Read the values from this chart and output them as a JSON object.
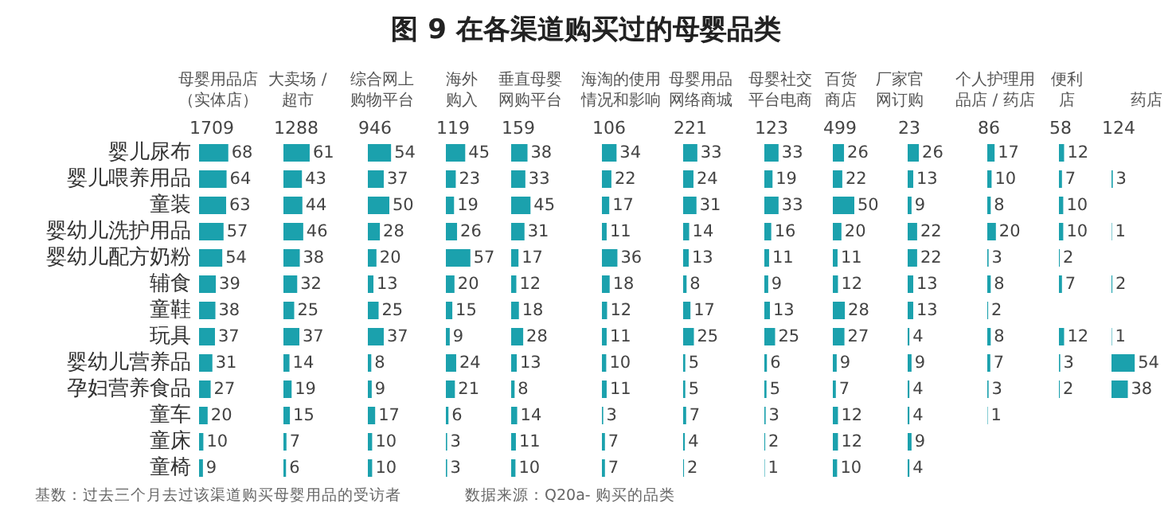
{
  "chart_data": [
    {
      "type": "bar",
      "orientation": "horizontal",
      "title": "母婴用品店（实体店）",
      "subtitle": "1709",
      "categories": [
        "婴儿尿布",
        "婴儿喂养用品",
        "童装",
        "婴幼儿洗护用品",
        "婴幼儿配方奶粉",
        "辅食",
        "童鞋",
        "玩具",
        "婴幼儿营养品",
        "孕妇营养食品",
        "童车",
        "童床",
        "童椅"
      ],
      "values": [
        68,
        64,
        63,
        57,
        54,
        39,
        38,
        37,
        31,
        27,
        20,
        10,
        9
      ],
      "color": "#1ba1ad",
      "data_labels": true,
      "tick_labels": "y",
      "annotations": [
        "图 9  在各渠道购买过的母婴品类",
        "基数：过去三个月去过该渠道购买母婴用品的受访者",
        "数据来源：Q20a- 购买的品类"
      ]
    },
    {
      "type": "bar",
      "orientation": "horizontal",
      "title": "大卖场 /超市",
      "subtitle": "1288",
      "categories": [
        null,
        null,
        null,
        null,
        null,
        null,
        null,
        null,
        null,
        null,
        null,
        null,
        null
      ],
      "values": [
        61,
        43,
        44,
        46,
        38,
        32,
        25,
        37,
        14,
        19,
        15,
        7,
        6
      ],
      "color": "#1ba1ad",
      "data_labels": true,
      "tick_labels": false
    },
    {
      "type": "bar",
      "orientation": "horizontal",
      "title": "综合网上购物平台",
      "subtitle": "946",
      "categories": [
        null,
        null,
        null,
        null,
        null,
        null,
        null,
        null,
        null,
        null,
        null,
        null,
        null
      ],
      "values": [
        54,
        37,
        50,
        28,
        20,
        13,
        25,
        37,
        8,
        9,
        17,
        10,
        10
      ],
      "color": "#1ba1ad",
      "data_labels": true,
      "tick_labels": false
    },
    {
      "type": "bar",
      "orientation": "horizontal",
      "title": "海外购入",
      "subtitle": "119",
      "categories": [
        null,
        null,
        null,
        null,
        null,
        null,
        null,
        null,
        null,
        null,
        null,
        null,
        null
      ],
      "values": [
        45,
        23,
        19,
        26,
        57,
        20,
        15,
        9,
        24,
        21,
        6,
        3,
        3
      ],
      "color": "#1ba1ad",
      "data_labels": true,
      "tick_labels": false
    },
    {
      "type": "bar",
      "orientation": "horizontal",
      "title": "垂直母婴网购平台",
      "subtitle": "159",
      "categories": [
        null,
        null,
        null,
        null,
        null,
        null,
        null,
        null,
        null,
        null,
        null,
        null,
        null
      ],
      "values": [
        38,
        33,
        45,
        31,
        17,
        12,
        18,
        28,
        13,
        8,
        14,
        11,
        10
      ],
      "color": "#1ba1ad",
      "data_labels": true,
      "tick_labels": false
    },
    {
      "type": "bar",
      "orientation": "horizontal",
      "title": "海淘的使用情况和影响",
      "subtitle": "106",
      "categories": [
        null,
        null,
        null,
        null,
        null,
        null,
        null,
        null,
        null,
        null,
        null,
        null,
        null
      ],
      "values": [
        34,
        22,
        17,
        11,
        36,
        18,
        12,
        11,
        10,
        11,
        3,
        7,
        7
      ],
      "color": "#1ba1ad",
      "data_labels": true,
      "tick_labels": false
    },
    {
      "type": "bar",
      "orientation": "horizontal",
      "title": "母婴用品网络商城",
      "subtitle": "221",
      "categories": [
        null,
        null,
        null,
        null,
        null,
        null,
        null,
        null,
        null,
        null,
        null,
        null,
        null
      ],
      "values": [
        33,
        24,
        31,
        14,
        13,
        8,
        17,
        25,
        5,
        5,
        7,
        4,
        2
      ],
      "color": "#1ba1ad",
      "data_labels": true,
      "tick_labels": false
    },
    {
      "type": "bar",
      "orientation": "horizontal",
      "title": "母婴社交平台电商",
      "subtitle": "123",
      "categories": [
        null,
        null,
        null,
        null,
        null,
        null,
        null,
        null,
        null,
        null,
        null,
        null,
        null
      ],
      "values": [
        33,
        19,
        33,
        16,
        11,
        9,
        13,
        25,
        6,
        5,
        3,
        2,
        1
      ],
      "color": "#1ba1ad",
      "data_labels": true,
      "tick_labels": false
    },
    {
      "type": "bar",
      "orientation": "horizontal",
      "title": "百货商店",
      "subtitle": "499",
      "categories": [
        null,
        null,
        null,
        null,
        null,
        null,
        null,
        null,
        null,
        null,
        null,
        null,
        null
      ],
      "values": [
        26,
        22,
        50,
        20,
        11,
        12,
        28,
        27,
        9,
        7,
        12,
        12,
        10
      ],
      "color": "#1ba1ad",
      "data_labels": true,
      "tick_labels": false
    },
    {
      "type": "bar",
      "orientation": "horizontal",
      "title": "厂家官网订购",
      "subtitle": "23",
      "categories": [
        null,
        null,
        null,
        null,
        null,
        null,
        null,
        null,
        null,
        null,
        null,
        null,
        null
      ],
      "values": [
        26,
        13,
        9,
        22,
        22,
        13,
        13,
        4,
        9,
        4,
        4,
        9,
        4
      ],
      "color": "#1ba1ad",
      "data_labels": true,
      "tick_labels": false
    },
    {
      "type": "bar",
      "orientation": "horizontal",
      "title": "个人护理用品店 / 药店",
      "subtitle": "86",
      "categories": [
        null,
        null,
        null,
        null,
        null,
        null,
        null,
        null,
        null,
        null,
        null,
        null,
        null
      ],
      "values": [
        17,
        10,
        8,
        20,
        3,
        8,
        2,
        8,
        7,
        3,
        1,
        null,
        null
      ],
      "color": "#1ba1ad",
      "data_labels": true,
      "tick_labels": false
    },
    {
      "type": "bar",
      "orientation": "horizontal",
      "title": "便利店",
      "subtitle": "58",
      "categories": [
        null,
        null,
        null,
        null,
        null,
        null,
        null,
        null,
        null,
        null,
        null,
        null,
        null
      ],
      "values": [
        12,
        7,
        10,
        10,
        2,
        7,
        null,
        12,
        3,
        2,
        null,
        null,
        null
      ],
      "color": "#1ba1ad",
      "data_labels": true,
      "tick_labels": false
    },
    {
      "type": "bar",
      "orientation": "horizontal",
      "title": "药店",
      "subtitle": "124",
      "categories": [
        null,
        null,
        null,
        null,
        null,
        null,
        null,
        null,
        null,
        null,
        null,
        null,
        null
      ],
      "values": [
        null,
        3,
        null,
        1,
        null,
        2,
        null,
        1,
        54,
        38,
        null,
        null,
        null
      ],
      "color": "#1ba1ad",
      "data_labels": true,
      "tick_labels": false
    }
  ]
}
